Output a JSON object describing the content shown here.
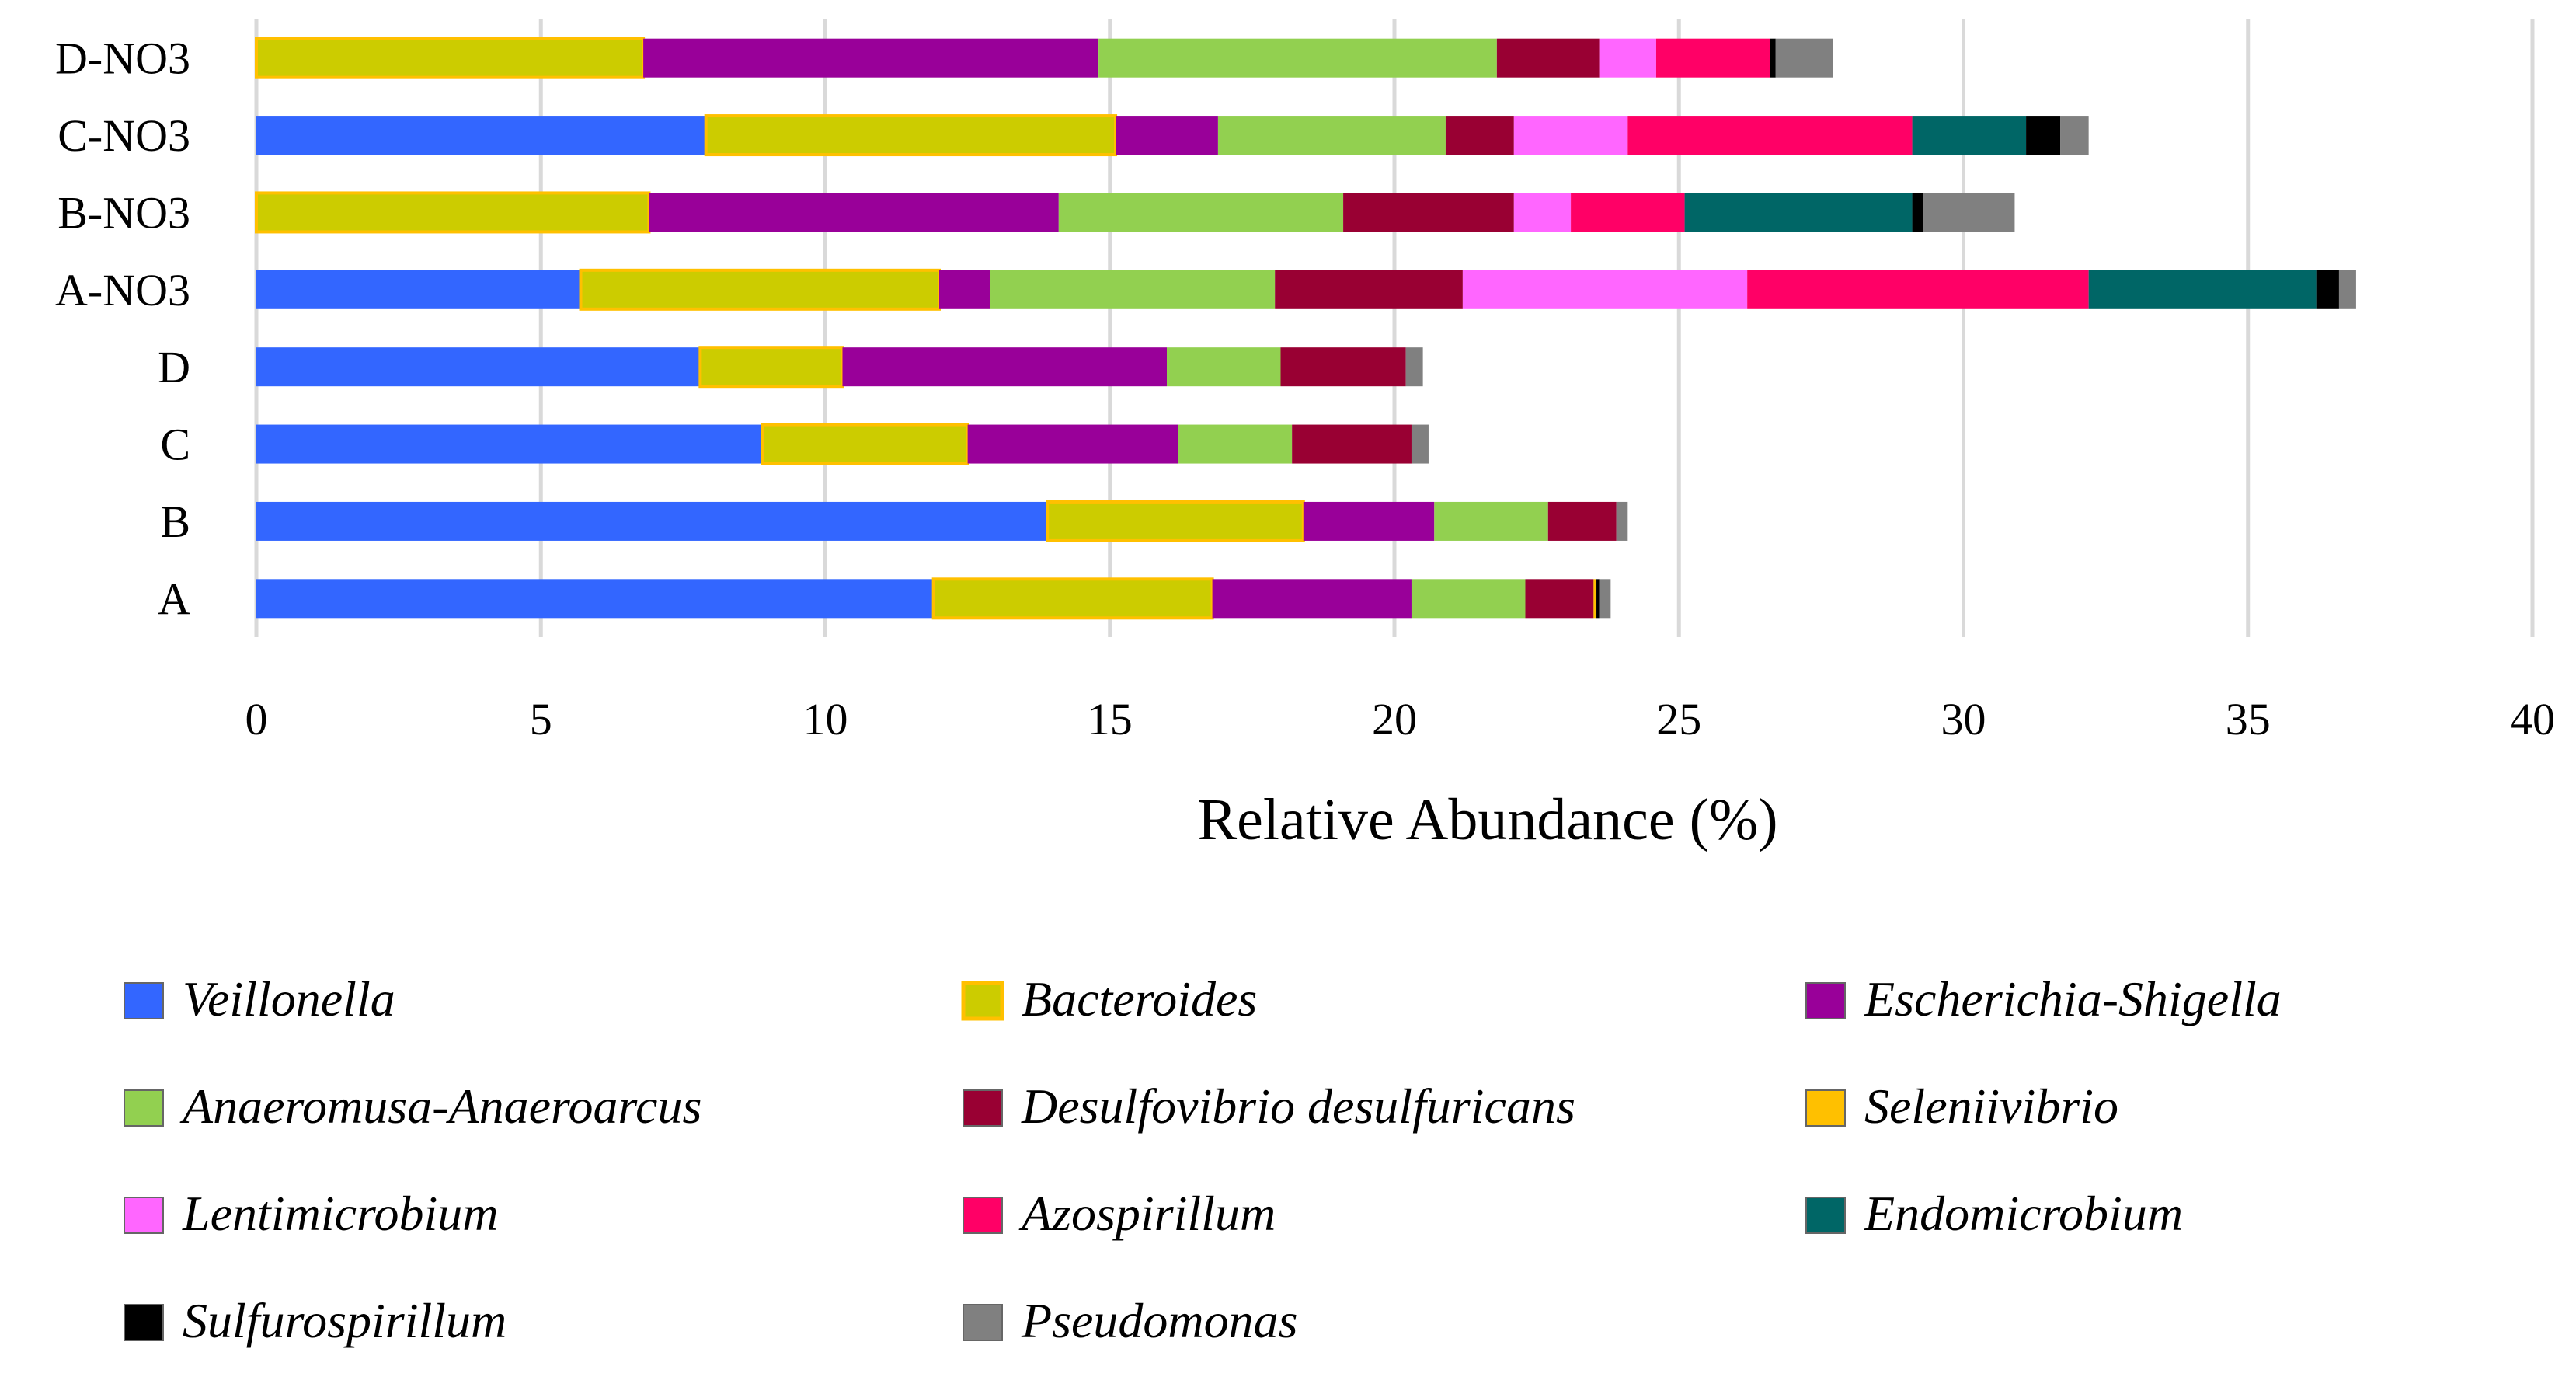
{
  "chart_data": {
    "type": "bar",
    "orientation": "horizontal",
    "stacked": true,
    "title": "",
    "xlabel": "Relative Abundance (%)",
    "ylabel": "",
    "xlim": [
      0,
      40
    ],
    "xticks": [
      "0",
      "5",
      "10",
      "15",
      "20",
      "25",
      "30",
      "35",
      "40"
    ],
    "grid": true,
    "legend_position": "bottom",
    "categories": [
      "D-NO3",
      "C-NO3",
      "B-NO3",
      "A-NO3",
      "D",
      "C",
      "B",
      "A"
    ],
    "series": [
      {
        "name": "Veillonella",
        "color": "#3366ff",
        "values": [
          0.0,
          7.9,
          0.0,
          5.7,
          7.8,
          8.9,
          13.9,
          11.9
        ]
      },
      {
        "name": "Bacteroides",
        "color": "#cccc00",
        "values": [
          6.8,
          7.2,
          6.9,
          6.3,
          2.5,
          3.6,
          4.5,
          4.9
        ]
      },
      {
        "name": "Escherichia-Shigella",
        "color": "#990099",
        "values": [
          8.0,
          1.8,
          7.2,
          0.9,
          5.7,
          3.7,
          2.3,
          3.5
        ]
      },
      {
        "name": "Anaeromusa-Anaeroarcus",
        "color": "#92d050",
        "values": [
          7.0,
          4.0,
          5.0,
          5.0,
          2.0,
          2.0,
          2.0,
          2.0
        ]
      },
      {
        "name": "Desulfovibrio desulfuricans",
        "color": "#990033",
        "values": [
          1.8,
          1.2,
          3.0,
          3.3,
          2.2,
          2.1,
          1.2,
          1.2
        ]
      },
      {
        "name": "Seleniivibrio",
        "color": "#ffc000",
        "values": [
          0.0,
          0.0,
          0.0,
          0.0,
          0.0,
          0.0,
          0.0,
          0.05
        ]
      },
      {
        "name": "Lentimicrobium",
        "color": "#ff66ff",
        "values": [
          1.0,
          2.0,
          1.0,
          5.0,
          0.0,
          0.0,
          0.0,
          0.0
        ]
      },
      {
        "name": "Azospirillum",
        "color": "#ff0066",
        "values": [
          2.0,
          5.0,
          2.0,
          6.0,
          0.0,
          0.0,
          0.0,
          0.0
        ]
      },
      {
        "name": "Endomicrobium",
        "color": "#006666",
        "values": [
          0.0,
          2.0,
          4.0,
          4.0,
          0.0,
          0.0,
          0.0,
          0.0
        ]
      },
      {
        "name": "Sulfurospirillum",
        "color": "#000000",
        "values": [
          0.1,
          0.6,
          0.2,
          0.4,
          0.0,
          0.0,
          0.0,
          0.05
        ]
      },
      {
        "name": "Pseudomonas",
        "color": "#808080",
        "values": [
          1.0,
          0.5,
          1.6,
          0.3,
          0.3,
          0.3,
          0.2,
          0.2
        ]
      }
    ]
  }
}
